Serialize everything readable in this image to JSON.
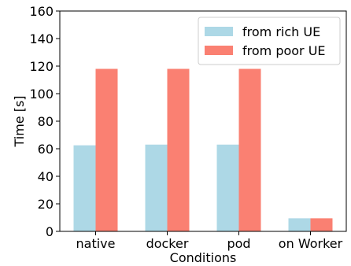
{
  "chart_data": {
    "type": "bar",
    "categories": [
      "native",
      "docker",
      "pod",
      "on Worker"
    ],
    "series": [
      {
        "name": "from rich UE",
        "values": [
          62.5,
          63,
          63,
          9.5
        ],
        "color": "#add8e6"
      },
      {
        "name": "from poor UE",
        "values": [
          118,
          118,
          118,
          9.5
        ],
        "color": "#fa8072"
      }
    ],
    "xlabel": "Conditions",
    "ylabel": "Time [s]",
    "ylim": [
      0,
      160
    ],
    "yticks": [
      0,
      20,
      40,
      60,
      80,
      100,
      120,
      140,
      160
    ],
    "grid": false,
    "legend_position": "top-right"
  }
}
